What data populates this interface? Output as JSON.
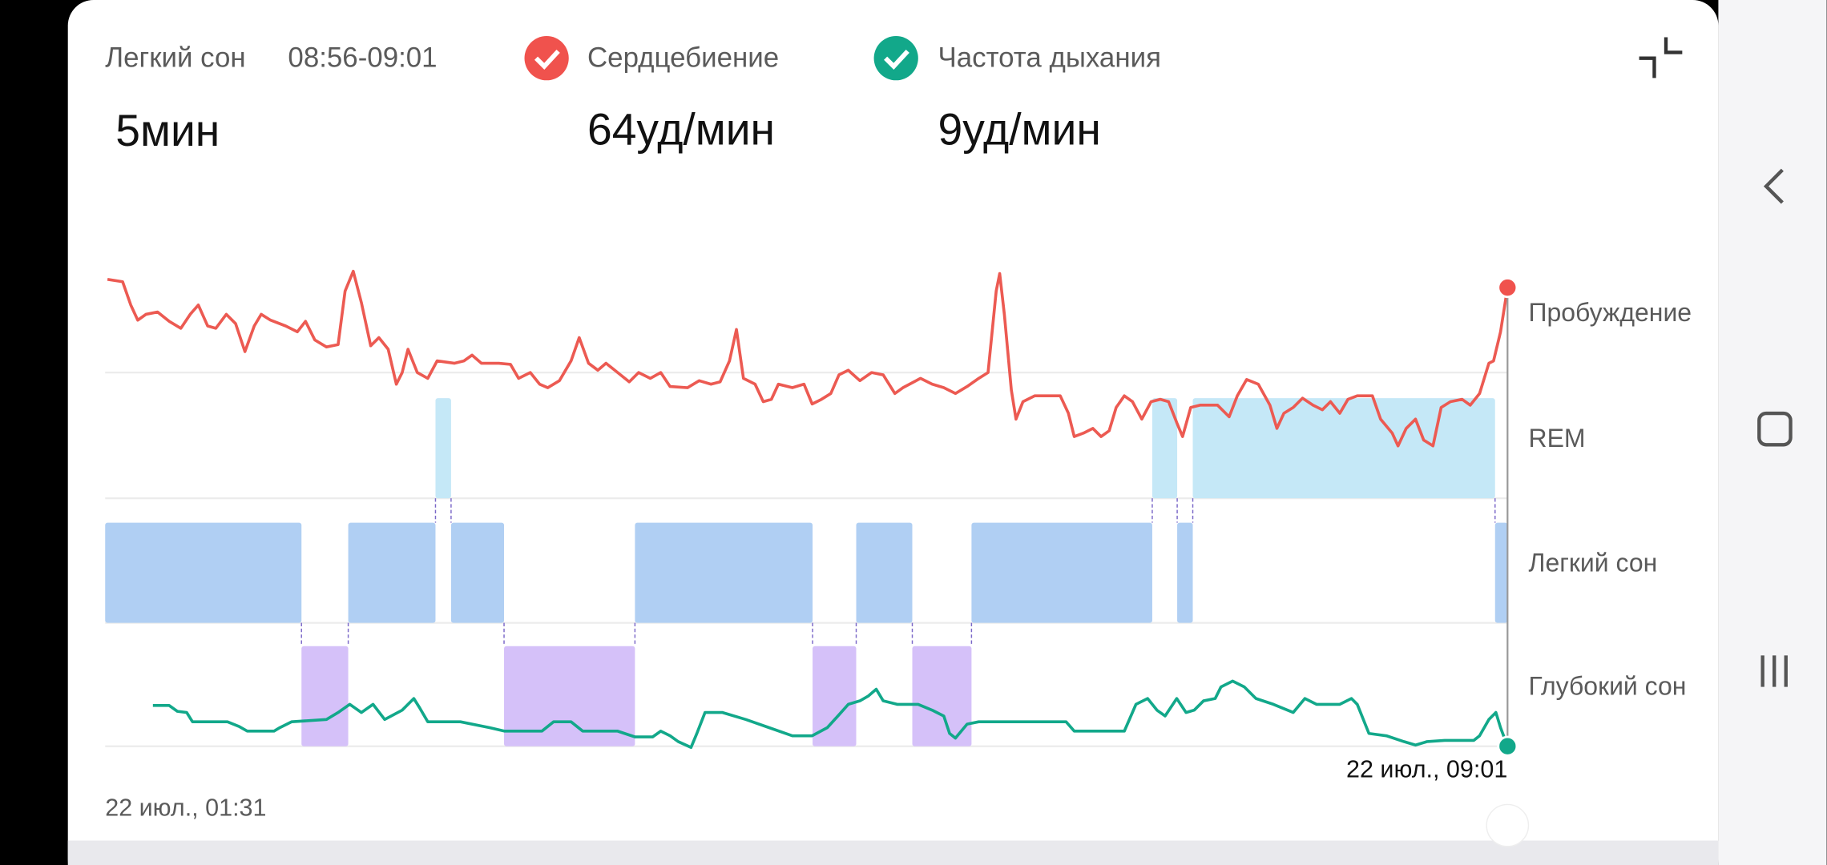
{
  "header": {
    "stage": "Легкий сон",
    "time_range": "08:56-09:01",
    "heart_label": "Сердцебиение",
    "breath_label": "Частота дыхания"
  },
  "values": {
    "duration": "5мин",
    "heart": "64уд/мин",
    "breath": "9уд/мин"
  },
  "hypnogram": {
    "stages": [
      "Пробуждение",
      "REM",
      "Легкий сон",
      "Глубокий сон"
    ],
    "start_label": "22 июл., 01:31",
    "end_label": "22 июл., 09:01",
    "xlim": [
      0,
      450
    ],
    "segments": [
      {
        "stage": 2,
        "start": 0,
        "end": 63
      },
      {
        "stage": 3,
        "start": 63,
        "end": 78
      },
      {
        "stage": 2,
        "start": 78,
        "end": 106
      },
      {
        "stage": 1,
        "start": 106,
        "end": 111
      },
      {
        "stage": 2,
        "start": 111,
        "end": 128
      },
      {
        "stage": 3,
        "start": 128,
        "end": 170
      },
      {
        "stage": 2,
        "start": 170,
        "end": 227
      },
      {
        "stage": 3,
        "start": 227,
        "end": 241
      },
      {
        "stage": 2,
        "start": 241,
        "end": 259
      },
      {
        "stage": 3,
        "start": 259,
        "end": 278
      },
      {
        "stage": 2,
        "start": 278,
        "end": 336
      },
      {
        "stage": 1,
        "start": 336,
        "end": 344
      },
      {
        "stage": 2,
        "start": 344,
        "end": 349
      },
      {
        "stage": 1,
        "start": 349,
        "end": 446
      },
      {
        "stage": 2,
        "start": 446,
        "end": 450
      }
    ]
  }
}
